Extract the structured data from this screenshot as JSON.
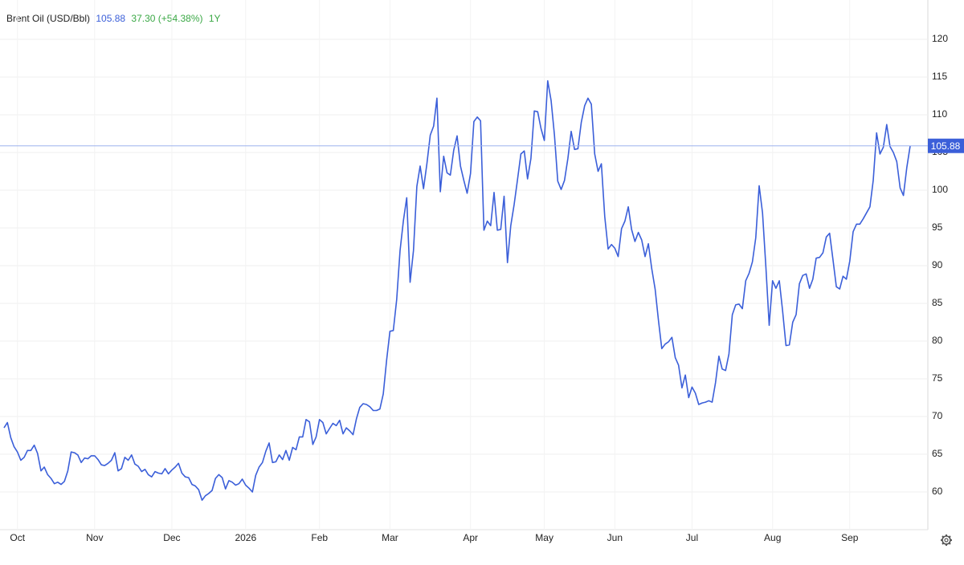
{
  "chart_data": {
    "type": "line",
    "title": "Brent Oil (USD/Bbl)",
    "last_value": 105.88,
    "change": "37.30 (+54.38%)",
    "range": "1Y",
    "color": "#3b5fd9",
    "values": [
      68.5,
      69.2,
      67.2,
      66,
      65.3,
      64.2,
      64.6,
      65.5,
      65.5,
      66.2,
      65.1,
      62.8,
      63.3,
      62.3,
      61.8,
      61.1,
      61.3,
      61.0,
      61.4,
      62.8,
      65.3,
      65.2,
      64.9,
      63.9,
      64.5,
      64.4,
      64.8,
      64.8,
      64.3,
      63.6,
      63.5,
      63.8,
      64.2,
      65.2,
      62.8,
      63.1,
      64.6,
      64.2,
      64.9,
      63.7,
      63.4,
      62.7,
      63.0,
      62.3,
      62.0,
      62.7,
      62.5,
      62.4,
      63.1,
      62.4,
      62.9,
      63.3,
      63.8,
      62.5,
      62.0,
      61.9,
      61.0,
      60.8,
      60.3,
      58.9,
      59.5,
      59.8,
      60.2,
      61.8,
      62.3,
      61.9,
      60.4,
      61.5,
      61.3,
      60.9,
      61.1,
      61.7,
      60.9,
      60.5,
      60.0,
      62.2,
      63.3,
      63.9,
      65.4,
      66.5,
      63.9,
      64.0,
      64.9,
      64.3,
      65.5,
      64.2,
      65.9,
      65.6,
      67.3,
      67.3,
      69.6,
      69.3,
      66.3,
      67.3,
      69.6,
      69.2,
      67.7,
      68.4,
      69.1,
      68.8,
      69.5,
      67.7,
      68.5,
      68.1,
      67.6,
      69.7,
      71.2,
      71.7,
      71.6,
      71.3,
      70.8,
      70.8,
      71.0,
      73.0,
      77.5,
      81.3,
      81.4,
      85.5,
      92.0,
      96.0,
      99.0,
      87.8,
      92.0,
      100.5,
      103.2,
      100.2,
      103.5,
      107.3,
      108.5,
      112.2,
      99.8,
      104.5,
      102.3,
      102.0,
      105.3,
      107.2,
      103.2,
      101.3,
      99.6,
      102.2,
      109.1,
      109.7,
      109.2,
      94.7,
      95.9,
      95.3,
      99.7,
      94.7,
      94.8,
      99.2,
      90.4,
      95.3,
      98.1,
      101.4,
      104.8,
      105.2,
      101.5,
      104.2,
      110.5,
      110.4,
      108.2,
      106.6,
      114.5,
      111.9,
      107.3,
      101.2,
      100.1,
      101.3,
      104.2,
      107.8,
      105.4,
      105.5,
      109.0,
      111.2,
      112.2,
      111.4,
      104.8,
      102.5,
      103.5,
      96.5,
      92.2,
      92.8,
      92.3,
      91.2,
      94.9,
      95.9,
      97.8,
      94.8,
      93.2,
      94.4,
      93.4,
      91.2,
      92.9,
      89.6,
      86.9,
      82.7,
      79.0,
      79.6,
      79.9,
      80.5,
      77.8,
      76.8,
      73.8,
      75.5,
      72.5,
      73.9,
      73.1,
      71.6,
      71.8,
      71.9,
      72.1,
      71.9,
      74.5,
      78.0,
      76.3,
      76.1,
      78.3,
      83.5,
      84.8,
      84.9,
      84.3,
      88.0,
      89.0,
      90.5,
      93.7,
      100.6,
      97.0,
      89.8,
      82.1,
      88.0,
      87.0,
      88.0,
      84.0,
      79.4,
      79.5,
      82.5,
      83.5,
      87.6,
      88.7,
      88.9,
      87.0,
      88.2,
      91.0,
      91.1,
      91.7,
      93.8,
      94.3,
      90.8,
      87.2,
      86.9,
      88.6,
      88.2,
      90.6,
      94.5,
      95.5,
      95.5,
      96.2,
      97.0,
      97.8,
      101.3,
      107.6,
      104.8,
      105.7,
      108.7,
      105.8,
      105.0,
      103.8,
      100.3,
      99.3,
      103.0,
      105.88
    ],
    "xlim": [
      0,
      270
    ],
    "xticks": [
      {
        "value": 4,
        "label": "Oct"
      },
      {
        "value": 27,
        "label": "Nov"
      },
      {
        "value": 50,
        "label": "Dec"
      },
      {
        "value": 72,
        "label": "2026"
      },
      {
        "value": 94,
        "label": "Feb"
      },
      {
        "value": 115,
        "label": "Mar"
      },
      {
        "value": 139,
        "label": "Apr"
      },
      {
        "value": 161,
        "label": "May"
      },
      {
        "value": 182,
        "label": "Jun"
      },
      {
        "value": 205,
        "label": "Jul"
      },
      {
        "value": 229,
        "label": "Aug"
      },
      {
        "value": 252,
        "label": "Sep"
      }
    ],
    "ylim": [
      55,
      125
    ],
    "yticks": [
      60,
      65,
      70,
      75,
      80,
      85,
      90,
      95,
      100,
      105,
      110,
      115,
      120
    ],
    "grid": true
  }
}
